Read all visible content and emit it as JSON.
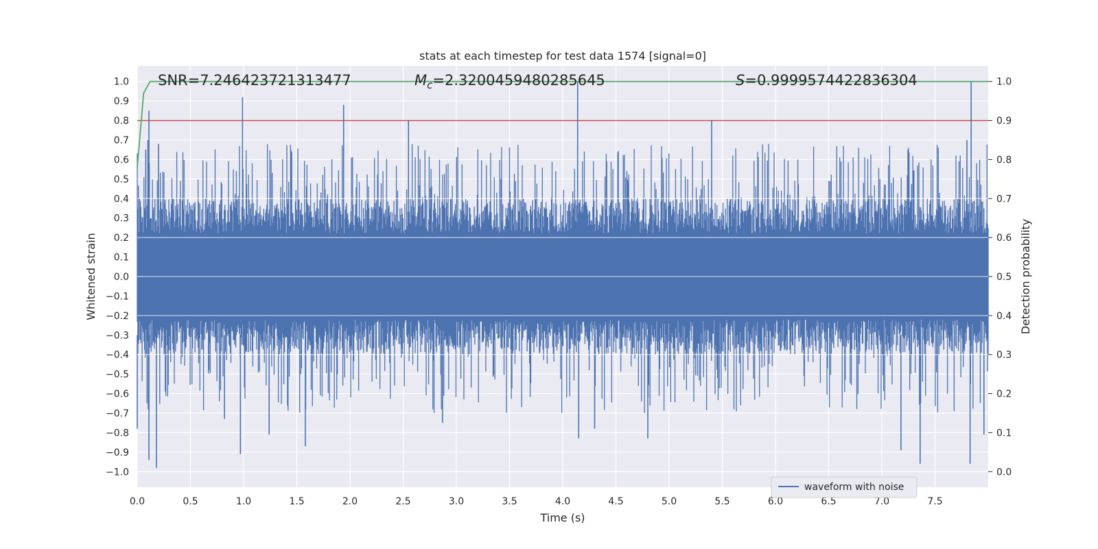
{
  "chart_data": {
    "type": "line",
    "title": "stats at each timestep for test data 1574 [signal=0]",
    "xlabel": "Time (s)",
    "ylabel": "Whitened strain",
    "y2label": "Detection probability",
    "xlim": [
      0.0,
      8.0
    ],
    "ylim": [
      -1.08,
      1.08
    ],
    "y2lim": [
      -0.04,
      1.04
    ],
    "grid": true,
    "legend": {
      "placement": "lower-right",
      "entries": [
        "waveform with noise"
      ]
    },
    "xticks": [
      0.0,
      0.5,
      1.0,
      1.5,
      2.0,
      2.5,
      3.0,
      3.5,
      4.0,
      4.5,
      5.0,
      5.5,
      6.0,
      6.5,
      7.0,
      7.5
    ],
    "yticks": [
      -1.0,
      -0.9,
      -0.8,
      -0.7,
      -0.6,
      -0.5,
      -0.4,
      -0.3,
      -0.2,
      -0.1,
      0.0,
      0.1,
      0.2,
      0.3,
      0.4,
      0.5,
      0.6,
      0.7,
      0.8,
      0.9,
      1.0
    ],
    "y2ticks": [
      0.0,
      0.1,
      0.2,
      0.3,
      0.4,
      0.5,
      0.6,
      0.7,
      0.8,
      0.9,
      1.0
    ],
    "annotations": {
      "snr": {
        "label": "SNR",
        "value": "7.246423721313477"
      },
      "mc": {
        "label": "M",
        "sub": "c",
        "value": "2.3200459480285645"
      },
      "s": {
        "label": "S",
        "value": "0.9999574422836304"
      }
    },
    "threshold": {
      "value": 0.9,
      "axis": "right",
      "color": "#c44e52"
    },
    "series": [
      {
        "name": "waveform with noise",
        "axis": "left",
        "color": "#4c72b0",
        "band": [
          -0.4,
          0.4
        ],
        "peaks": [
          {
            "x": 0.08,
            "y": 0.65
          },
          {
            "x": 0.1,
            "y": 0.7
          },
          {
            "x": 0.11,
            "y": 0.85
          },
          {
            "x": 0.2,
            "y": 0.68
          },
          {
            "x": 0.99,
            "y": 0.92
          },
          {
            "x": 1.94,
            "y": 0.88
          },
          {
            "x": 2.55,
            "y": 0.8
          },
          {
            "x": 4.14,
            "y": 1.0
          },
          {
            "x": 5.4,
            "y": 0.8
          },
          {
            "x": 7.8,
            "y": 0.7
          },
          {
            "x": 7.84,
            "y": 1.0
          },
          {
            "x": 0.0,
            "y": -0.78
          },
          {
            "x": 0.11,
            "y": -0.94
          },
          {
            "x": 0.18,
            "y": -0.98
          },
          {
            "x": 0.82,
            "y": -0.73
          },
          {
            "x": 0.97,
            "y": -0.91
          },
          {
            "x": 1.24,
            "y": -0.81
          },
          {
            "x": 1.58,
            "y": -0.87
          },
          {
            "x": 2.87,
            "y": -0.75
          },
          {
            "x": 4.15,
            "y": -0.83
          },
          {
            "x": 4.3,
            "y": -0.78
          },
          {
            "x": 4.8,
            "y": -0.83
          },
          {
            "x": 7.18,
            "y": -0.89
          },
          {
            "x": 7.36,
            "y": -0.96
          },
          {
            "x": 7.83,
            "y": -0.96
          },
          {
            "x": 7.96,
            "y": -0.81
          }
        ]
      },
      {
        "name": "",
        "axis": "right",
        "color": "#55a868",
        "x": [
          0.0,
          0.06,
          0.12,
          8.0
        ],
        "y": [
          0.78,
          0.97,
          1.0,
          1.0
        ]
      }
    ]
  }
}
